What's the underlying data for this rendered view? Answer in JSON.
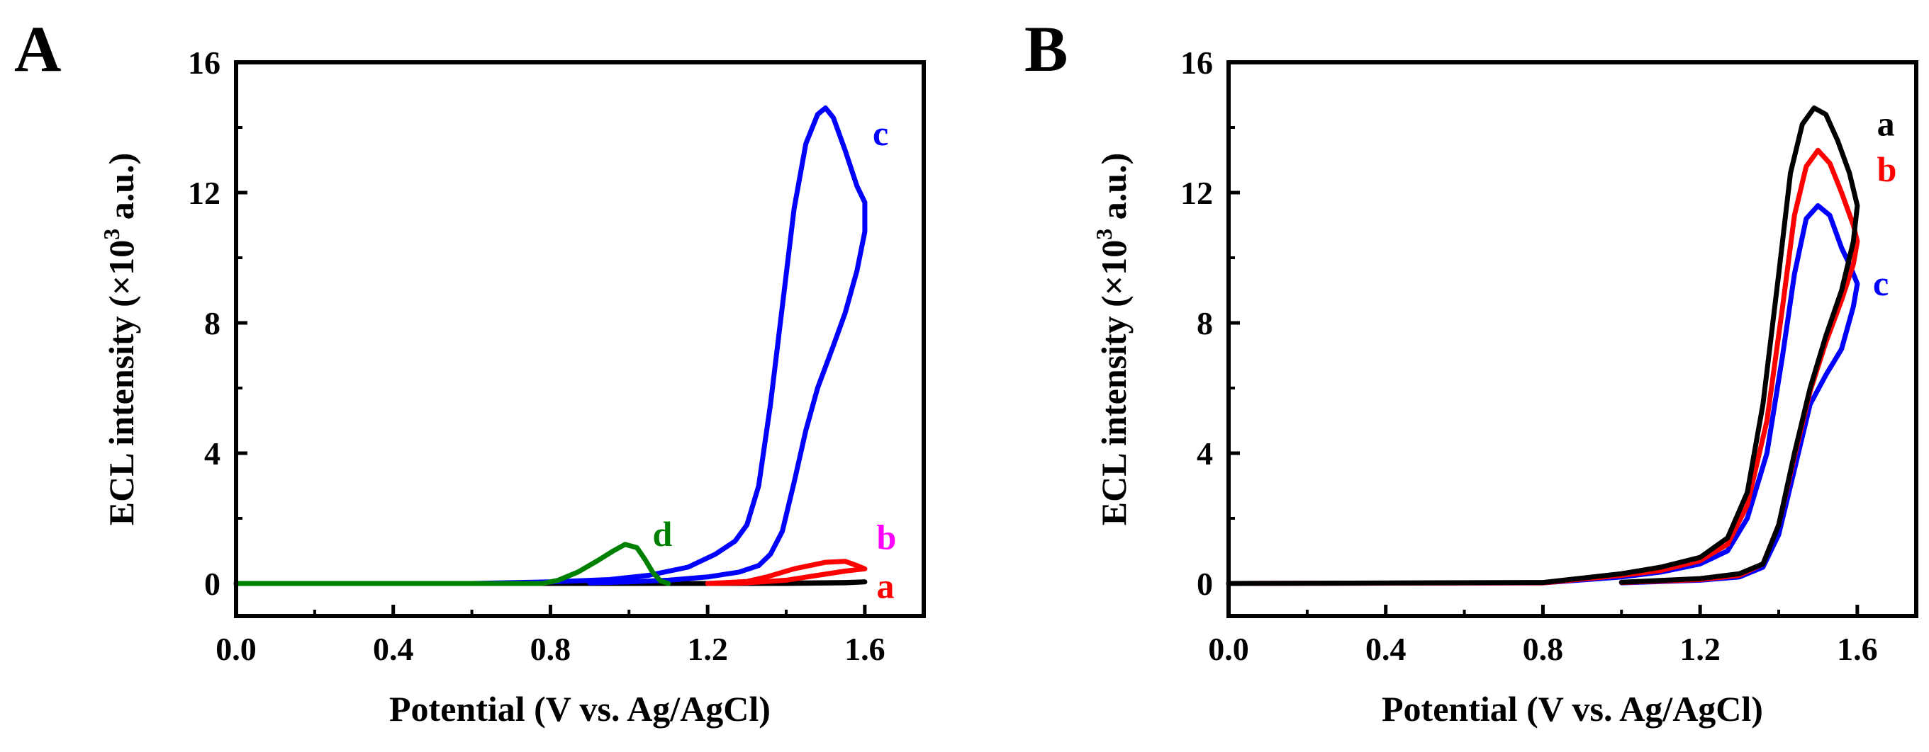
{
  "figure": {
    "panels": [
      "A",
      "B"
    ]
  },
  "chart_data": [
    {
      "panel_label": "A",
      "type": "line",
      "title": "",
      "xlabel": "Potential (V vs. Ag/AgCl)",
      "ylabel_main": "ECL intensity (×10",
      "ylabel_sup": "3",
      "ylabel_tail": " a.u.)",
      "xlim": [
        0.0,
        1.75
      ],
      "ylim": [
        -1,
        16
      ],
      "xticks": [
        0.0,
        0.4,
        0.8,
        1.2,
        1.6
      ],
      "xtick_labels": [
        "0.0",
        "0.4",
        "0.8",
        "1.2",
        "1.6"
      ],
      "yticks": [
        0,
        4,
        8,
        12,
        16
      ],
      "ytick_labels": [
        "0",
        "4",
        "8",
        "12",
        "16"
      ],
      "grid": false,
      "series": [
        {
          "name": "a",
          "color": "#000000",
          "label": {
            "text": "a",
            "color": "#ff0000",
            "x": 1.63,
            "y": -0.1
          },
          "points": [
            [
              0.0,
              0.0
            ],
            [
              0.8,
              0.0
            ],
            [
              1.2,
              0.0
            ],
            [
              1.4,
              0.0
            ],
            [
              1.55,
              0.02
            ],
            [
              1.6,
              0.05
            ],
            [
              1.55,
              0.03
            ],
            [
              1.4,
              0.01
            ],
            [
              1.2,
              0.0
            ],
            [
              1.0,
              0.0
            ]
          ]
        },
        {
          "name": "b",
          "color": "#ff0000",
          "label": {
            "text": "b",
            "color": "#ff00ff",
            "x": 1.63,
            "y": 1.4
          },
          "points": [
            [
              1.2,
              0.0
            ],
            [
              1.3,
              0.06
            ],
            [
              1.35,
              0.2
            ],
            [
              1.42,
              0.45
            ],
            [
              1.5,
              0.65
            ],
            [
              1.55,
              0.68
            ],
            [
              1.58,
              0.55
            ],
            [
              1.6,
              0.45
            ],
            [
              1.55,
              0.38
            ],
            [
              1.48,
              0.25
            ],
            [
              1.4,
              0.1
            ],
            [
              1.3,
              0.02
            ],
            [
              1.2,
              0.0
            ]
          ]
        },
        {
          "name": "c",
          "color": "#0000ff",
          "label": {
            "text": "c",
            "color": "#0000ff",
            "x": 1.62,
            "y": 13.8
          },
          "points": [
            [
              0.0,
              0.0
            ],
            [
              0.6,
              0.0
            ],
            [
              0.8,
              0.05
            ],
            [
              0.95,
              0.12
            ],
            [
              1.05,
              0.25
            ],
            [
              1.15,
              0.5
            ],
            [
              1.22,
              0.9
            ],
            [
              1.27,
              1.3
            ],
            [
              1.3,
              1.8
            ],
            [
              1.33,
              3.0
            ],
            [
              1.36,
              5.5
            ],
            [
              1.39,
              8.5
            ],
            [
              1.42,
              11.5
            ],
            [
              1.45,
              13.5
            ],
            [
              1.48,
              14.4
            ],
            [
              1.5,
              14.6
            ],
            [
              1.52,
              14.3
            ],
            [
              1.55,
              13.3
            ],
            [
              1.58,
              12.2
            ],
            [
              1.6,
              11.7
            ],
            [
              1.6,
              10.8
            ],
            [
              1.58,
              9.6
            ],
            [
              1.55,
              8.3
            ],
            [
              1.52,
              7.3
            ],
            [
              1.48,
              6.0
            ],
            [
              1.45,
              4.7
            ],
            [
              1.42,
              3.1
            ],
            [
              1.39,
              1.6
            ],
            [
              1.36,
              0.9
            ],
            [
              1.33,
              0.55
            ],
            [
              1.28,
              0.35
            ],
            [
              1.2,
              0.2
            ],
            [
              1.1,
              0.1
            ],
            [
              1.0,
              0.05
            ],
            [
              0.9,
              0.02
            ]
          ]
        },
        {
          "name": "d",
          "color": "#008000",
          "label": {
            "text": "d",
            "color": "#008000",
            "x": 1.06,
            "y": 1.5
          },
          "points": [
            [
              0.0,
              0.0
            ],
            [
              0.78,
              0.0
            ],
            [
              0.82,
              0.1
            ],
            [
              0.87,
              0.35
            ],
            [
              0.92,
              0.7
            ],
            [
              0.96,
              1.0
            ],
            [
              0.99,
              1.2
            ],
            [
              1.02,
              1.1
            ],
            [
              1.04,
              0.75
            ],
            [
              1.06,
              0.35
            ],
            [
              1.08,
              0.08
            ],
            [
              1.1,
              0.0
            ]
          ]
        }
      ]
    },
    {
      "panel_label": "B",
      "type": "line",
      "title": "",
      "xlabel": "Potential (V vs. Ag/AgCl)",
      "ylabel_main": "ECL intensity (×10",
      "ylabel_sup": "3",
      "ylabel_tail": " a.u.)",
      "xlim": [
        0.0,
        1.75
      ],
      "ylim": [
        -1,
        16
      ],
      "xticks": [
        0.0,
        0.4,
        0.8,
        1.2,
        1.6
      ],
      "xtick_labels": [
        "0.0",
        "0.4",
        "0.8",
        "1.2",
        "1.6"
      ],
      "yticks": [
        0,
        4,
        8,
        12,
        16
      ],
      "ytick_labels": [
        "0",
        "4",
        "8",
        "12",
        "16"
      ],
      "grid": false,
      "series": [
        {
          "name": "c",
          "color": "#0000ff",
          "label": {
            "text": "c",
            "color": "#0000ff",
            "x": 1.64,
            "y": 9.2
          },
          "points": [
            [
              0.0,
              0.0
            ],
            [
              0.8,
              0.02
            ],
            [
              1.0,
              0.2
            ],
            [
              1.1,
              0.35
            ],
            [
              1.2,
              0.6
            ],
            [
              1.27,
              1.0
            ],
            [
              1.32,
              2.0
            ],
            [
              1.37,
              4.0
            ],
            [
              1.41,
              7.0
            ],
            [
              1.44,
              9.5
            ],
            [
              1.47,
              11.2
            ],
            [
              1.5,
              11.6
            ],
            [
              1.53,
              11.3
            ],
            [
              1.56,
              10.3
            ],
            [
              1.58,
              9.8
            ],
            [
              1.6,
              9.2
            ],
            [
              1.59,
              8.5
            ],
            [
              1.56,
              7.2
            ],
            [
              1.52,
              6.4
            ],
            [
              1.48,
              5.5
            ],
            [
              1.44,
              3.5
            ],
            [
              1.4,
              1.5
            ],
            [
              1.36,
              0.5
            ],
            [
              1.3,
              0.2
            ],
            [
              1.2,
              0.1
            ],
            [
              1.0,
              0.02
            ]
          ]
        },
        {
          "name": "b",
          "color": "#ff0000",
          "label": {
            "text": "b",
            "color": "#ff0000",
            "x": 1.65,
            "y": 12.7
          },
          "points": [
            [
              0.0,
              0.0
            ],
            [
              0.8,
              0.02
            ],
            [
              1.0,
              0.25
            ],
            [
              1.1,
              0.4
            ],
            [
              1.2,
              0.7
            ],
            [
              1.27,
              1.2
            ],
            [
              1.32,
              2.4
            ],
            [
              1.37,
              5.0
            ],
            [
              1.41,
              8.5
            ],
            [
              1.44,
              11.3
            ],
            [
              1.47,
              12.8
            ],
            [
              1.5,
              13.3
            ],
            [
              1.53,
              12.9
            ],
            [
              1.56,
              12.0
            ],
            [
              1.59,
              11.0
            ],
            [
              1.6,
              10.5
            ],
            [
              1.59,
              9.8
            ],
            [
              1.56,
              8.7
            ],
            [
              1.52,
              7.4
            ],
            [
              1.48,
              5.9
            ],
            [
              1.44,
              3.9
            ],
            [
              1.4,
              1.8
            ],
            [
              1.36,
              0.6
            ],
            [
              1.3,
              0.25
            ],
            [
              1.2,
              0.12
            ],
            [
              1.0,
              0.03
            ]
          ]
        },
        {
          "name": "a",
          "color": "#000000",
          "label": {
            "text": "a",
            "color": "#000000",
            "x": 1.65,
            "y": 14.1
          },
          "points": [
            [
              0.0,
              0.0
            ],
            [
              0.8,
              0.03
            ],
            [
              1.0,
              0.3
            ],
            [
              1.1,
              0.5
            ],
            [
              1.2,
              0.8
            ],
            [
              1.27,
              1.4
            ],
            [
              1.32,
              2.8
            ],
            [
              1.36,
              5.5
            ],
            [
              1.4,
              9.5
            ],
            [
              1.43,
              12.6
            ],
            [
              1.46,
              14.1
            ],
            [
              1.49,
              14.6
            ],
            [
              1.52,
              14.4
            ],
            [
              1.55,
              13.6
            ],
            [
              1.58,
              12.6
            ],
            [
              1.6,
              11.6
            ],
            [
              1.59,
              10.5
            ],
            [
              1.56,
              9.0
            ],
            [
              1.52,
              7.6
            ],
            [
              1.48,
              6.0
            ],
            [
              1.44,
              4.0
            ],
            [
              1.4,
              1.8
            ],
            [
              1.36,
              0.6
            ],
            [
              1.3,
              0.3
            ],
            [
              1.2,
              0.15
            ],
            [
              1.0,
              0.04
            ]
          ]
        }
      ]
    }
  ]
}
